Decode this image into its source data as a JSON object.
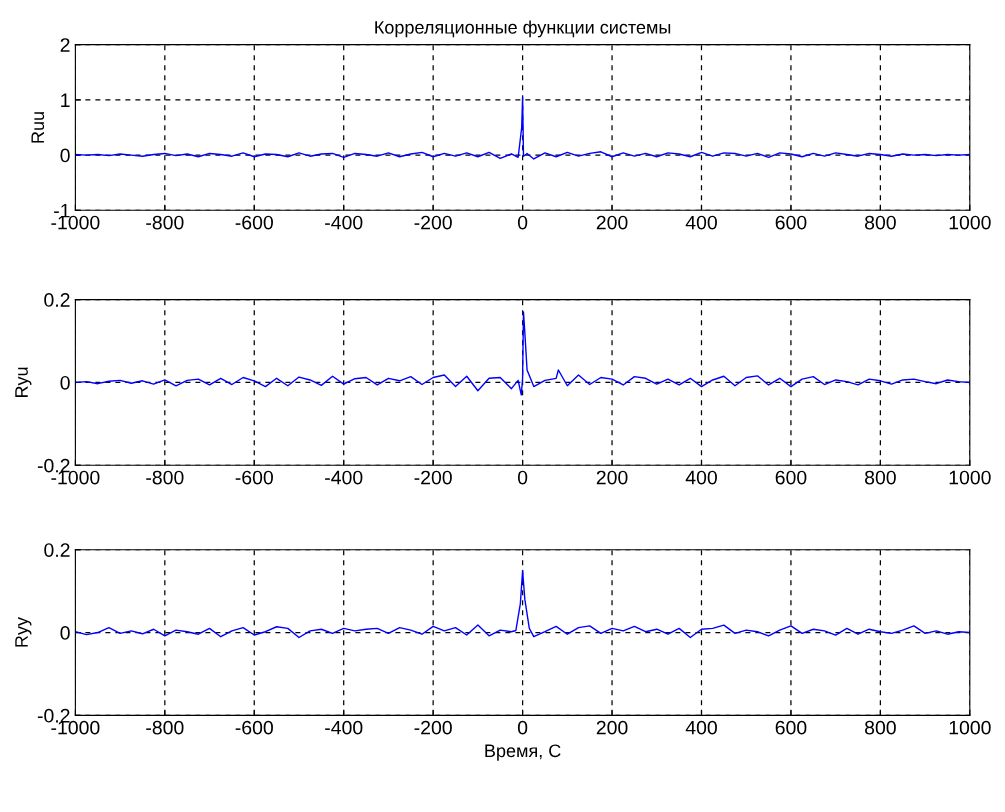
{
  "chart_data": [
    {
      "type": "line",
      "title": "Корреляционные функции системы",
      "ylabel": "Ruu",
      "xlim": [
        -1000,
        1000
      ],
      "ylim": [
        -1,
        2
      ],
      "xticks": [
        -1000,
        -800,
        -600,
        -400,
        -200,
        0,
        200,
        400,
        600,
        800,
        1000
      ],
      "yticks": [
        -1,
        0,
        1,
        2
      ],
      "grid": true,
      "series": [
        {
          "color": "#0000ff",
          "x": [
            -1000,
            -975,
            -950,
            -925,
            -900,
            -875,
            -850,
            -825,
            -800,
            -775,
            -750,
            -725,
            -700,
            -675,
            -650,
            -625,
            -600,
            -575,
            -550,
            -525,
            -500,
            -475,
            -450,
            -425,
            -400,
            -375,
            -350,
            -325,
            -300,
            -275,
            -250,
            -225,
            -200,
            -175,
            -150,
            -125,
            -100,
            -75,
            -50,
            -25,
            -10,
            -2,
            0,
            2,
            10,
            25,
            50,
            75,
            100,
            125,
            150,
            175,
            200,
            225,
            250,
            275,
            300,
            325,
            350,
            375,
            400,
            425,
            450,
            475,
            500,
            525,
            550,
            575,
            600,
            625,
            650,
            675,
            700,
            725,
            750,
            775,
            800,
            825,
            850,
            875,
            900,
            925,
            950,
            975,
            1000
          ],
          "values": [
            0.01,
            0,
            0.01,
            -0.01,
            0.02,
            0,
            -0.02,
            0.01,
            0.03,
            -0.01,
            0.02,
            -0.03,
            0.03,
            0.01,
            -0.02,
            0.04,
            -0.03,
            0.02,
            0.01,
            -0.03,
            0.04,
            -0.02,
            0.02,
            0.03,
            -0.04,
            0.03,
            0.01,
            -0.02,
            0.04,
            -0.03,
            0.02,
            0.05,
            -0.03,
            0.03,
            -0.02,
            0.04,
            -0.03,
            0.05,
            -0.06,
            0.02,
            -0.04,
            0.5,
            1.05,
            -0.02,
            0.03,
            -0.07,
            0.04,
            -0.03,
            0.05,
            -0.02,
            0.03,
            0.06,
            -0.03,
            0.04,
            -0.02,
            0.03,
            -0.03,
            0.04,
            0.02,
            -0.03,
            0.05,
            -0.02,
            0.04,
            0.03,
            -0.02,
            0.03,
            -0.04,
            0.04,
            0.02,
            -0.03,
            0.03,
            -0.02,
            0.04,
            0.01,
            -0.02,
            0.03,
            0.01,
            -0.02,
            0.02,
            0,
            0.01,
            -0.01,
            0.01,
            0,
            0.01
          ]
        }
      ]
    },
    {
      "type": "line",
      "ylabel": "Ryu",
      "xlim": [
        -1000,
        1000
      ],
      "ylim": [
        -0.2,
        0.2
      ],
      "xticks": [
        -1000,
        -800,
        -600,
        -400,
        -200,
        0,
        200,
        400,
        600,
        800,
        1000
      ],
      "yticks": [
        -0.2,
        0,
        0.2
      ],
      "grid": true,
      "series": [
        {
          "color": "#0000ff",
          "x": [
            -1000,
            -975,
            -950,
            -925,
            -900,
            -875,
            -850,
            -825,
            -800,
            -775,
            -750,
            -725,
            -700,
            -675,
            -650,
            -625,
            -600,
            -575,
            -550,
            -525,
            -500,
            -475,
            -450,
            -425,
            -400,
            -375,
            -350,
            -325,
            -300,
            -275,
            -250,
            -225,
            -200,
            -175,
            -150,
            -125,
            -100,
            -75,
            -50,
            -25,
            -10,
            -3,
            0,
            2,
            5,
            10,
            25,
            50,
            75,
            80,
            100,
            125,
            150,
            175,
            200,
            225,
            250,
            275,
            300,
            325,
            350,
            375,
            400,
            425,
            450,
            475,
            500,
            525,
            550,
            575,
            600,
            625,
            650,
            675,
            700,
            725,
            750,
            775,
            800,
            825,
            850,
            875,
            900,
            925,
            950,
            975,
            1000
          ],
          "values": [
            0,
            0.002,
            -0.003,
            0.003,
            0.005,
            -0.002,
            0.004,
            -0.004,
            0.006,
            -0.008,
            0.005,
            0.008,
            -0.006,
            0.01,
            -0.005,
            0.012,
            0.004,
            -0.01,
            0.01,
            -0.008,
            0.013,
            0.006,
            -0.007,
            0.015,
            -0.004,
            0.009,
            0.012,
            -0.006,
            0.01,
            0.004,
            0.014,
            -0.005,
            0.012,
            0.018,
            -0.01,
            0.015,
            -0.02,
            0.01,
            0.012,
            -0.015,
            0.005,
            -0.03,
            0.01,
            0.17,
            0.12,
            0.03,
            -0.01,
            0.005,
            0.01,
            0.03,
            -0.008,
            0.018,
            -0.005,
            0.012,
            0.008,
            -0.006,
            0.014,
            0.01,
            -0.004,
            0.008,
            -0.006,
            0.01,
            -0.01,
            0.006,
            0.015,
            -0.008,
            0.012,
            0.016,
            -0.006,
            0.01,
            -0.01,
            0.008,
            0.014,
            -0.005,
            0.006,
            0.002,
            -0.006,
            0.008,
            0.004,
            -0.004,
            0.006,
            0.008,
            0.002,
            -0.003,
            0.006,
            0.002,
            0
          ]
        }
      ]
    },
    {
      "type": "line",
      "ylabel": "Ryy",
      "xlabel": "Время, С",
      "xlim": [
        -1000,
        1000
      ],
      "ylim": [
        -0.2,
        0.2
      ],
      "xticks": [
        -1000,
        -800,
        -600,
        -400,
        -200,
        0,
        200,
        400,
        600,
        800,
        1000
      ],
      "yticks": [
        -0.2,
        0,
        0.2
      ],
      "grid": true,
      "series": [
        {
          "color": "#0000ff",
          "x": [
            -1000,
            -975,
            -950,
            -925,
            -900,
            -875,
            -850,
            -825,
            -800,
            -775,
            -750,
            -725,
            -700,
            -675,
            -650,
            -625,
            -600,
            -575,
            -550,
            -525,
            -500,
            -475,
            -450,
            -425,
            -400,
            -375,
            -350,
            -325,
            -300,
            -275,
            -250,
            -225,
            -200,
            -175,
            -150,
            -125,
            -100,
            -75,
            -50,
            -25,
            -15,
            -5,
            0,
            5,
            15,
            25,
            50,
            75,
            100,
            125,
            150,
            175,
            200,
            225,
            250,
            275,
            300,
            325,
            350,
            375,
            400,
            425,
            450,
            475,
            500,
            525,
            550,
            575,
            600,
            625,
            650,
            675,
            700,
            725,
            750,
            775,
            800,
            825,
            850,
            875,
            900,
            925,
            950,
            975,
            1000
          ],
          "values": [
            0.002,
            -0.005,
            0,
            0.012,
            -0.002,
            0.004,
            -0.003,
            0.008,
            -0.008,
            0.006,
            0.002,
            -0.004,
            0.01,
            -0.01,
            0.004,
            0.012,
            -0.006,
            0.002,
            0.014,
            0.01,
            -0.012,
            0.004,
            0.008,
            -0.002,
            0.01,
            0.004,
            0.008,
            0.01,
            -0.002,
            0.012,
            0.006,
            -0.004,
            0.015,
            0.004,
            0.012,
            -0.006,
            0.018,
            -0.008,
            0.006,
            0.002,
            0.005,
            0.07,
            0.15,
            0.08,
            0.01,
            -0.01,
            0.002,
            0.015,
            -0.004,
            0.012,
            0.016,
            -0.002,
            0.01,
            0.004,
            0.015,
            0.002,
            0.008,
            -0.004,
            0.01,
            -0.012,
            0.008,
            0.01,
            0.018,
            -0.002,
            0.006,
            0.002,
            -0.008,
            0.006,
            0.016,
            -0.002,
            0.008,
            0.004,
            -0.006,
            0.01,
            -0.004,
            0.008,
            0.002,
            -0.002,
            0.006,
            0.016,
            -0.002,
            0.004,
            -0.004,
            0.002,
            0
          ]
        }
      ]
    }
  ]
}
